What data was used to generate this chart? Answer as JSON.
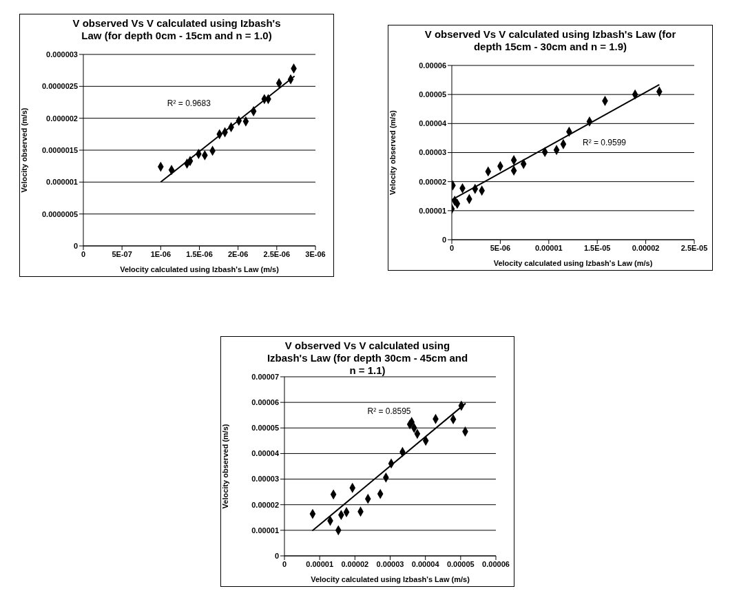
{
  "chart_data": [
    {
      "type": "scatter",
      "title": "V observed Vs V calculated using Izbash's Law (for depth 0cm - 15cm and n = 1.0)",
      "xlabel": "Velocity calculated using Izbash's Law (m/s)",
      "ylabel": "Velocity observed (m/s)",
      "grid": "y",
      "xlim": [
        0,
        3e-06
      ],
      "xticks": [
        {
          "value": 0,
          "label": "0"
        },
        {
          "value": 5e-07,
          "label": "5E-07"
        },
        {
          "value": 1e-06,
          "label": "1E-06"
        },
        {
          "value": 1.5e-06,
          "label": "1.5E-06"
        },
        {
          "value": 2e-06,
          "label": "2E-06"
        },
        {
          "value": 2.5e-06,
          "label": "2.5E-06"
        },
        {
          "value": 3e-06,
          "label": "3E-06"
        }
      ],
      "ylim": [
        0,
        3e-06
      ],
      "yticks": [
        {
          "value": 0,
          "label": "0"
        },
        {
          "value": 5e-07,
          "label": "0.0000005"
        },
        {
          "value": 1e-06,
          "label": "0.000001"
        },
        {
          "value": 1.5e-06,
          "label": "0.0000015"
        },
        {
          "value": 2e-06,
          "label": "0.000002"
        },
        {
          "value": 2.5e-06,
          "label": "0.0000025"
        },
        {
          "value": 3e-06,
          "label": "0.000003"
        }
      ],
      "annotations": [
        "R² = 0.9683"
      ],
      "series": [
        {
          "type": "scatter",
          "marker": "diamond",
          "color": "#000000",
          "x": [
            1e-06,
            1.14e-06,
            1.34e-06,
            1.38e-06,
            1.49e-06,
            1.57e-06,
            1.67e-06,
            1.76e-06,
            1.83e-06,
            1.91e-06,
            2.01e-06,
            2.1e-06,
            2.2e-06,
            2.34e-06,
            2.39e-06,
            2.53e-06,
            2.68e-06,
            2.72e-06
          ],
          "values": [
            1.24e-06,
            1.19e-06,
            1.29e-06,
            1.33e-06,
            1.44e-06,
            1.42e-06,
            1.49e-06,
            1.75e-06,
            1.78e-06,
            1.86e-06,
            1.96e-06,
            1.95e-06,
            2.11e-06,
            2.3e-06,
            2.3e-06,
            2.55e-06,
            2.61e-06,
            2.78e-06
          ]
        },
        {
          "type": "line",
          "marker": "none",
          "color": "#000000",
          "x": [
            1e-06,
            2.73e-06
          ],
          "values": [
            1e-06,
            2.66e-06
          ]
        }
      ]
    },
    {
      "type": "scatter",
      "title": "V observed Vs V calculated using Izbash's Law (for depth 15cm - 30cm and n = 1.9)",
      "xlabel": "Velocity calculated using Izbash's Law (m/s)",
      "ylabel": "Velocity observed (m/s)",
      "grid": "y",
      "xlim": [
        0,
        2.5e-05
      ],
      "xticks": [
        {
          "value": 0,
          "label": "0"
        },
        {
          "value": 5e-06,
          "label": "5E-06"
        },
        {
          "value": 1e-05,
          "label": "0.00001"
        },
        {
          "value": 1.5e-05,
          "label": "1.5E-05"
        },
        {
          "value": 2e-05,
          "label": "0.00002"
        },
        {
          "value": 2.5e-05,
          "label": "2.5E-05"
        }
      ],
      "ylim": [
        0,
        6e-05
      ],
      "yticks": [
        {
          "value": 0,
          "label": "0"
        },
        {
          "value": 1e-05,
          "label": "0.00001"
        },
        {
          "value": 2e-05,
          "label": "0.00002"
        },
        {
          "value": 3e-05,
          "label": "0.00003"
        },
        {
          "value": 4e-05,
          "label": "0.00004"
        },
        {
          "value": 5e-05,
          "label": "0.00005"
        },
        {
          "value": 6e-05,
          "label": "0.00006"
        }
      ],
      "annotations": [
        "R² = 0.9599"
      ],
      "series": [
        {
          "type": "scatter",
          "marker": "diamond",
          "color": "#000000",
          "x": [
            1e-07,
            0.0,
            3e-07,
            5.6e-07,
            1.1e-06,
            1.8e-06,
            2.4e-06,
            3.1e-06,
            3.75e-06,
            5e-06,
            6.4e-06,
            6.4e-06,
            7.4e-06,
            9.6e-06,
            1.08e-05,
            1.15e-05,
            1.21e-05,
            1.42e-05,
            1.58e-05,
            1.89e-05,
            2.14e-05
          ],
          "values": [
            1.87e-05,
            1.06e-05,
            1.34e-05,
            1.24e-05,
            1.77e-05,
            1.4e-05,
            1.75e-05,
            1.69e-05,
            2.35e-05,
            2.53e-05,
            2.74e-05,
            2.38e-05,
            2.61e-05,
            3.02e-05,
            3.09e-05,
            3.29e-05,
            3.72e-05,
            4.07e-05,
            4.78e-05,
            5e-05,
            5.1e-05
          ]
        },
        {
          "type": "line",
          "marker": "none",
          "color": "#000000",
          "x": [
            0.0,
            2.14e-05
          ],
          "values": [
            1.37e-05,
            5.34e-05
          ]
        }
      ]
    },
    {
      "type": "scatter",
      "title": "V observed Vs V calculated using Izbash's Law (for depth 30cm - 45cm and n = 1.1)",
      "xlabel": "Velocity calculated using Izbash's Law (m/s)",
      "ylabel": "Velocity observed (m/s)",
      "grid": "y",
      "xlim": [
        0,
        6e-05
      ],
      "xticks": [
        {
          "value": 0,
          "label": "0"
        },
        {
          "value": 1e-05,
          "label": "0.00001"
        },
        {
          "value": 2e-05,
          "label": "0.00002"
        },
        {
          "value": 3e-05,
          "label": "0.00003"
        },
        {
          "value": 4e-05,
          "label": "0.00004"
        },
        {
          "value": 5e-05,
          "label": "0.00005"
        },
        {
          "value": 6e-05,
          "label": "0.00006"
        }
      ],
      "ylim": [
        0,
        7e-05
      ],
      "yticks": [
        {
          "value": 0,
          "label": "0"
        },
        {
          "value": 1e-05,
          "label": "0.00001"
        },
        {
          "value": 2e-05,
          "label": "0.00002"
        },
        {
          "value": 3e-05,
          "label": "0.00003"
        },
        {
          "value": 4e-05,
          "label": "0.00004"
        },
        {
          "value": 5e-05,
          "label": "0.00005"
        },
        {
          "value": 6e-05,
          "label": "0.00006"
        },
        {
          "value": 7e-05,
          "label": "0.00007"
        }
      ],
      "annotations": [
        "R² = 0.8595"
      ],
      "series": [
        {
          "type": "scatter",
          "marker": "diamond",
          "color": "#000000",
          "x": [
            8e-06,
            1.3e-05,
            1.39e-05,
            1.53e-05,
            1.61e-05,
            1.76e-05,
            1.93e-05,
            2.16e-05,
            2.37e-05,
            2.72e-05,
            2.88e-05,
            3.03e-05,
            3.35e-05,
            3.56e-05,
            3.61e-05,
            3.68e-05,
            3.77e-05,
            4.01e-05,
            4.29e-05,
            4.79e-05,
            5.02e-05,
            5.13e-05
          ],
          "values": [
            1.64e-05,
            1.37e-05,
            2.4e-05,
            1e-05,
            1.6e-05,
            1.71e-05,
            2.66e-05,
            1.73e-05,
            2.23e-05,
            2.42e-05,
            3.06e-05,
            3.61e-05,
            4.06e-05,
            5.14e-05,
            5.23e-05,
            5e-05,
            4.77e-05,
            4.5e-05,
            5.35e-05,
            5.34e-05,
            5.87e-05,
            4.86e-05
          ]
        },
        {
          "type": "line",
          "marker": "none",
          "color": "#000000",
          "x": [
            7.9e-06,
            5.14e-05
          ],
          "values": [
            9.8e-06,
            5.96e-05
          ]
        }
      ]
    }
  ]
}
